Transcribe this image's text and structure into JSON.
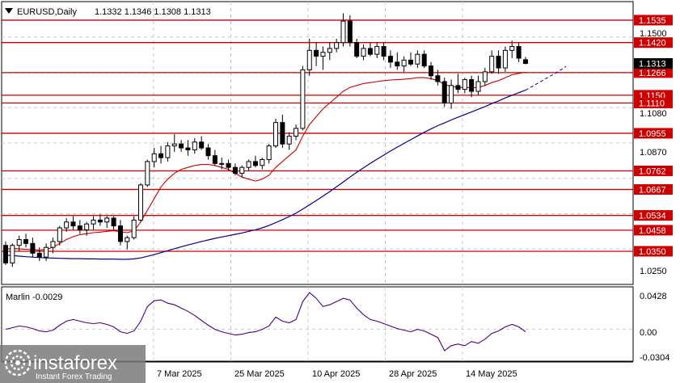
{
  "header": {
    "symbol": "EURUSD,Daily",
    "ohlc": "1.1332 1.1346 1.1308 1.1313",
    "menu_icon": "triangle-down-icon"
  },
  "logo": {
    "brand": "instaforex",
    "tagline": "Instant Forex Trading",
    "icon": "instaforex-logo-icon"
  },
  "colors": {
    "levels": "#cc0000",
    "price_box": "#000000",
    "fast_ma": "#cc0000",
    "slow_ma": "#00008b",
    "marlin": "#4b0082",
    "candle_up": "#ffffff",
    "candle_down": "#000000"
  },
  "chart_data": [
    {
      "type": "candlestick",
      "title": "EURUSD,Daily",
      "current_price": "1.1313",
      "ylim": [
        1.018,
        1.163
      ],
      "y_ticks": [
        "1.1500",
        "1.1080",
        "1.0870",
        "1.0250"
      ],
      "x_ticks": [
        "7 Mar 2025",
        "25 Mar 2025",
        "10 Apr 2025",
        "28 Apr 2025",
        "14 May 2025"
      ],
      "levels": [
        "1.1535",
        "1.1420",
        "1.1266",
        "1.1150",
        "1.1110",
        "1.0955",
        "1.0762",
        "1.0667",
        "1.0534",
        "1.0458",
        "1.0350"
      ],
      "candles": [
        [
          1.038,
          1.04,
          1.028,
          1.029
        ],
        [
          1.029,
          1.039,
          1.027,
          1.038
        ],
        [
          1.038,
          1.043,
          1.035,
          1.041
        ],
        [
          1.041,
          1.044,
          1.037,
          1.039
        ],
        [
          1.039,
          1.042,
          1.032,
          1.034
        ],
        [
          1.034,
          1.037,
          1.03,
          1.032
        ],
        [
          1.032,
          1.039,
          1.03,
          1.037
        ],
        [
          1.037,
          1.042,
          1.034,
          1.04
        ],
        [
          1.04,
          1.048,
          1.038,
          1.047
        ],
        [
          1.047,
          1.052,
          1.045,
          1.05
        ],
        [
          1.05,
          1.053,
          1.046,
          1.048
        ],
        [
          1.048,
          1.051,
          1.044,
          1.046
        ],
        [
          1.046,
          1.05,
          1.043,
          1.049
        ],
        [
          1.049,
          1.053,
          1.046,
          1.051
        ],
        [
          1.051,
          1.054,
          1.048,
          1.05
        ],
        [
          1.05,
          1.053,
          1.047,
          1.052
        ],
        [
          1.052,
          1.053,
          1.046,
          1.048
        ],
        [
          1.048,
          1.051,
          1.038,
          1.04
        ],
        [
          1.04,
          1.043,
          1.036,
          1.042
        ],
        [
          1.042,
          1.053,
          1.041,
          1.051
        ],
        [
          1.051,
          1.07,
          1.05,
          1.069
        ],
        [
          1.069,
          1.082,
          1.068,
          1.081
        ],
        [
          1.081,
          1.088,
          1.078,
          1.085
        ],
        [
          1.085,
          1.089,
          1.08,
          1.083
        ],
        [
          1.083,
          1.091,
          1.081,
          1.089
        ],
        [
          1.089,
          1.095,
          1.086,
          1.09
        ],
        [
          1.09,
          1.092,
          1.086,
          1.088
        ],
        [
          1.088,
          1.092,
          1.084,
          1.087
        ],
        [
          1.087,
          1.093,
          1.085,
          1.091
        ],
        [
          1.091,
          1.094,
          1.087,
          1.088
        ],
        [
          1.088,
          1.09,
          1.082,
          1.084
        ],
        [
          1.084,
          1.087,
          1.079,
          1.08
        ],
        [
          1.08,
          1.083,
          1.077,
          1.08
        ],
        [
          1.08,
          1.082,
          1.076,
          1.078
        ],
        [
          1.078,
          1.08,
          1.074,
          1.075
        ],
        [
          1.075,
          1.079,
          1.073,
          1.078
        ],
        [
          1.078,
          1.082,
          1.076,
          1.081
        ],
        [
          1.081,
          1.084,
          1.078,
          1.079
        ],
        [
          1.079,
          1.083,
          1.077,
          1.082
        ],
        [
          1.082,
          1.09,
          1.08,
          1.089
        ],
        [
          1.089,
          1.103,
          1.088,
          1.101
        ],
        [
          1.101,
          1.105,
          1.088,
          1.09
        ],
        [
          1.09,
          1.096,
          1.087,
          1.094
        ],
        [
          1.094,
          1.1,
          1.092,
          1.098
        ],
        [
          1.098,
          1.13,
          1.097,
          1.128
        ],
        [
          1.128,
          1.144,
          1.125,
          1.138
        ],
        [
          1.138,
          1.142,
          1.13,
          1.135
        ],
        [
          1.135,
          1.14,
          1.128,
          1.137
        ],
        [
          1.137,
          1.142,
          1.133,
          1.139
        ],
        [
          1.139,
          1.144,
          1.137,
          1.142
        ],
        [
          1.142,
          1.157,
          1.14,
          1.153
        ],
        [
          1.153,
          1.156,
          1.14,
          1.142
        ],
        [
          1.142,
          1.144,
          1.134,
          1.135
        ],
        [
          1.135,
          1.141,
          1.133,
          1.139
        ],
        [
          1.139,
          1.142,
          1.135,
          1.136
        ],
        [
          1.136,
          1.142,
          1.134,
          1.14
        ],
        [
          1.14,
          1.142,
          1.133,
          1.135
        ],
        [
          1.135,
          1.138,
          1.129,
          1.132
        ],
        [
          1.132,
          1.137,
          1.128,
          1.13
        ],
        [
          1.13,
          1.135,
          1.127,
          1.133
        ],
        [
          1.133,
          1.137,
          1.13,
          1.131
        ],
        [
          1.131,
          1.138,
          1.129,
          1.136
        ],
        [
          1.136,
          1.138,
          1.129,
          1.13
        ],
        [
          1.13,
          1.132,
          1.123,
          1.125
        ],
        [
          1.125,
          1.128,
          1.12,
          1.122
        ],
        [
          1.122,
          1.124,
          1.109,
          1.111
        ],
        [
          1.111,
          1.123,
          1.108,
          1.12
        ],
        [
          1.12,
          1.126,
          1.116,
          1.118
        ],
        [
          1.118,
          1.124,
          1.116,
          1.123
        ],
        [
          1.123,
          1.125,
          1.114,
          1.117
        ],
        [
          1.117,
          1.125,
          1.115,
          1.122
        ],
        [
          1.122,
          1.129,
          1.12,
          1.127
        ],
        [
          1.127,
          1.138,
          1.126,
          1.135
        ],
        [
          1.135,
          1.138,
          1.126,
          1.129
        ],
        [
          1.129,
          1.14,
          1.127,
          1.138
        ],
        [
          1.138,
          1.143,
          1.134,
          1.14
        ],
        [
          1.14,
          1.142,
          1.132,
          1.134
        ],
        [
          1.1332,
          1.1346,
          1.1308,
          1.1313
        ]
      ],
      "fast_ma": [
        1.036,
        1.0365,
        1.0362,
        1.036,
        1.0358,
        1.0355,
        1.036,
        1.037,
        1.039,
        1.041,
        1.0425,
        1.0435,
        1.044,
        1.0445,
        1.0448,
        1.0452,
        1.0455,
        1.045,
        1.0445,
        1.0455,
        1.05,
        1.056,
        1.062,
        1.068,
        1.072,
        1.075,
        1.077,
        1.078,
        1.079,
        1.0795,
        1.0795,
        1.079,
        1.078,
        1.077,
        1.075,
        1.073,
        1.072,
        1.071,
        1.072,
        1.074,
        1.078,
        1.081,
        1.084,
        1.087,
        1.094,
        1.1,
        1.104,
        1.108,
        1.111,
        1.114,
        1.117,
        1.119,
        1.12,
        1.121,
        1.1215,
        1.122,
        1.1225,
        1.1228,
        1.123,
        1.1232,
        1.1235,
        1.124,
        1.124,
        1.1235,
        1.1225,
        1.1205,
        1.1195,
        1.119,
        1.119,
        1.1188,
        1.119,
        1.12,
        1.1215,
        1.1225,
        1.124,
        1.1255,
        1.1262,
        1.1268
      ],
      "slow_ma": [
        1.033,
        1.0328,
        1.0325,
        1.0322,
        1.032,
        1.0318,
        1.0316,
        1.0315,
        1.0314,
        1.0313,
        1.0312,
        1.0312,
        1.0311,
        1.0311,
        1.031,
        1.031,
        1.031,
        1.0309,
        1.0309,
        1.0311,
        1.0316,
        1.0324,
        1.0333,
        1.0343,
        1.0353,
        1.0363,
        1.0373,
        1.0382,
        1.0391,
        1.04,
        1.0408,
        1.0416,
        1.0423,
        1.043,
        1.0437,
        1.0444,
        1.0452,
        1.046,
        1.047,
        1.0482,
        1.0497,
        1.0512,
        1.0528,
        1.0545,
        1.0566,
        1.0588,
        1.061,
        1.0633,
        1.0656,
        1.068,
        1.0705,
        1.073,
        1.0755,
        1.0778,
        1.08,
        1.0822,
        1.0843,
        1.0864,
        1.0884,
        1.0903,
        1.0922,
        1.0941,
        1.096,
        1.0977,
        1.0994,
        1.1008,
        1.1023,
        1.1037,
        1.1051,
        1.1064,
        1.1078,
        1.1092,
        1.1107,
        1.1121,
        1.1136,
        1.115,
        1.1163,
        1.1176
      ],
      "slow_ma_projection": [
        1.1176,
        1.1195,
        1.1215,
        1.1235,
        1.1255,
        1.1275,
        1.1298
      ]
    },
    {
      "type": "line",
      "title": "Marlin -0.0029",
      "series_name": "Marlin",
      "current_value": "-0.0029",
      "ylim": [
        -0.039,
        0.052
      ],
      "y_ticks": [
        "0.0428",
        "0.00",
        "-0.0304"
      ],
      "values": [
        0.0,
        0.002,
        0.004,
        0.003,
        0.001,
        -0.002,
        -0.003,
        -0.001,
        0.005,
        0.01,
        0.012,
        0.01,
        0.008,
        0.007,
        0.008,
        0.006,
        0.003,
        -0.003,
        -0.005,
        -0.002,
        0.01,
        0.028,
        0.035,
        0.036,
        0.032,
        0.03,
        0.026,
        0.022,
        0.017,
        0.011,
        0.005,
        0.0,
        -0.003,
        -0.005,
        -0.007,
        -0.006,
        -0.004,
        -0.003,
        0.0,
        0.004,
        0.015,
        0.01,
        0.008,
        0.012,
        0.034,
        0.045,
        0.038,
        0.028,
        0.03,
        0.034,
        0.038,
        0.036,
        0.026,
        0.018,
        0.012,
        0.01,
        0.007,
        0.004,
        0.001,
        -0.001,
        -0.003,
        0.0,
        -0.002,
        -0.006,
        -0.01,
        -0.026,
        -0.02,
        -0.018,
        -0.02,
        -0.015,
        -0.017,
        -0.012,
        -0.005,
        -0.002,
        0.003,
        0.006,
        0.003,
        -0.0029
      ]
    }
  ]
}
